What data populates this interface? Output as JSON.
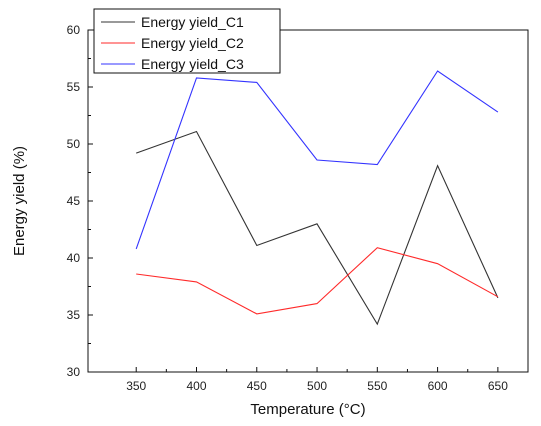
{
  "chart_data": {
    "type": "line",
    "xlabel": "Temperature (°C)",
    "ylabel": "Energy yield (%)",
    "x": [
      350,
      400,
      450,
      500,
      550,
      600,
      650
    ],
    "xlim": [
      310,
      675
    ],
    "ylim": [
      30,
      60
    ],
    "xticks": [
      350,
      400,
      450,
      500,
      550,
      600,
      650
    ],
    "yticks": [
      30,
      35,
      40,
      45,
      50,
      55,
      60
    ],
    "grid": false,
    "legend_position": "top-left",
    "series": [
      {
        "name": "Energy yield_C1",
        "color": "#333333",
        "values": [
          49.2,
          51.1,
          41.1,
          43.0,
          34.2,
          48.1,
          36.5
        ]
      },
      {
        "name": "Energy yield_C2",
        "color": "#ff2a2a",
        "values": [
          38.6,
          37.9,
          35.1,
          36.0,
          40.9,
          39.5,
          36.6
        ]
      },
      {
        "name": "Energy yield_C3",
        "color": "#3333ff",
        "values": [
          40.8,
          55.8,
          55.4,
          48.6,
          48.2,
          56.4,
          52.8
        ]
      }
    ]
  }
}
